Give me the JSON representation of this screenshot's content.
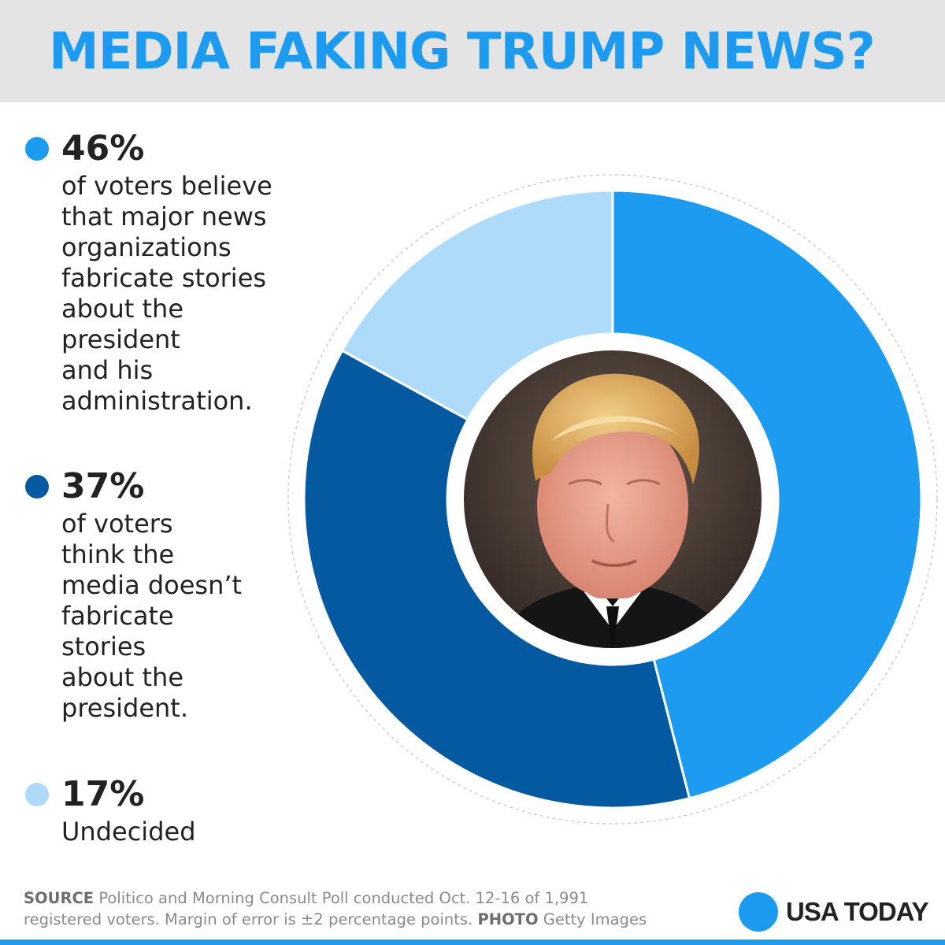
{
  "header": {
    "title": "MEDIA FAKING TRUMP NEWS?"
  },
  "chart_data": {
    "type": "pie",
    "donut": true,
    "title": "MEDIA FAKING TRUMP NEWS?",
    "slices": [
      {
        "label": "46%",
        "value": 46,
        "color": "#1d9bf0",
        "description": [
          "of voters believe",
          "that major news",
          "organizations",
          "fabricate stories",
          "about the",
          "president",
          "and his",
          "administration."
        ]
      },
      {
        "label": "37%",
        "value": 37,
        "color": "#0559a1",
        "description": [
          "of voters",
          "think the",
          "media doesn’t",
          "fabricate",
          "stories",
          "about the",
          "president."
        ]
      },
      {
        "label": "17%",
        "value": 17,
        "color": "#aedbfa",
        "description": [
          "Undecided"
        ]
      }
    ],
    "legend_position": "left",
    "center_image": "trump-photo"
  },
  "footer": {
    "source_label": "SOURCE",
    "source_text": "Politico and Morning Consult Poll conducted Oct. 12-16 of 1,991",
    "source_text_2": "registered voters. Margin of error is ±2 percentage points.",
    "photo_label": "PHOTO",
    "photo_text": "Getty Images",
    "brand": "USA TODAY",
    "brand_color": "#1d9bf0"
  }
}
